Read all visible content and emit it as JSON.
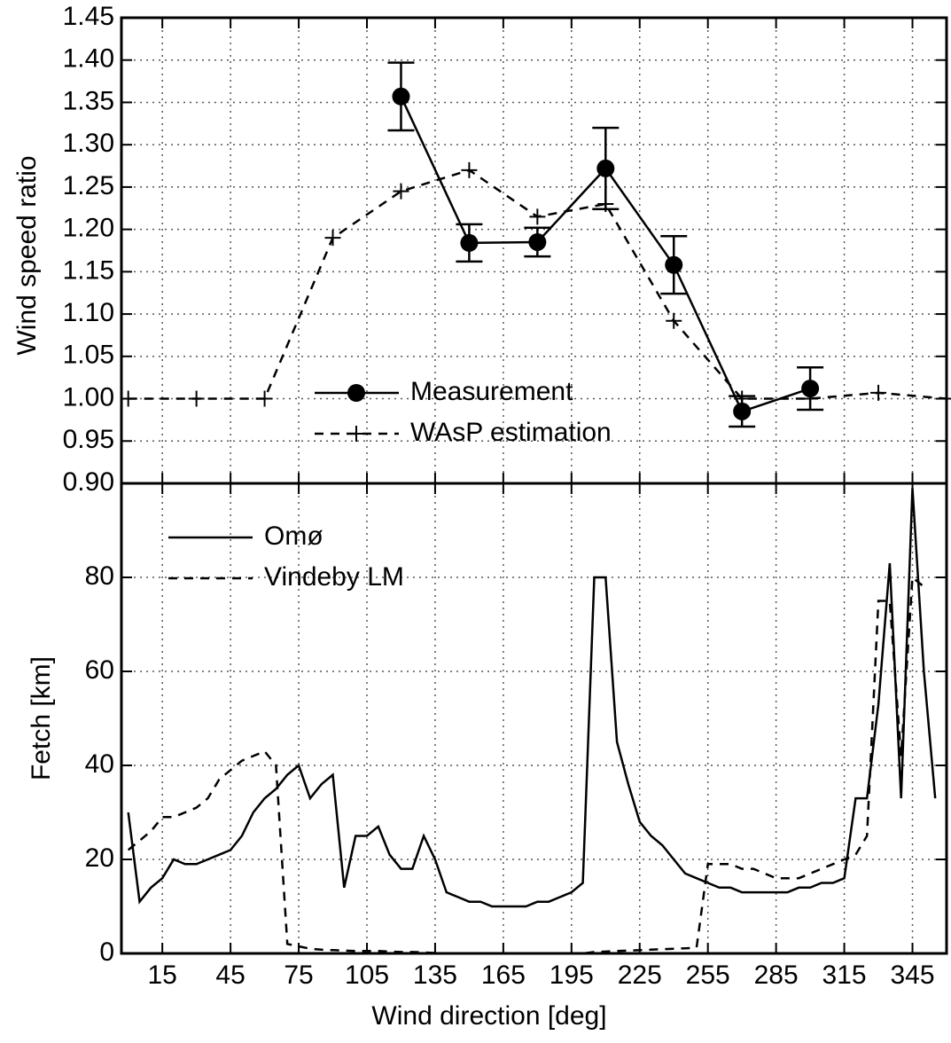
{
  "chart_data": [
    {
      "type": "line",
      "ylabel": "Wind speed ratio",
      "xlim": [
        -3,
        360
      ],
      "xticks": [
        15,
        45,
        75,
        105,
        135,
        165,
        195,
        225,
        255,
        285,
        315,
        345
      ],
      "ylim": [
        0.9,
        1.45
      ],
      "yticks": [
        {
          "value": 0.9,
          "label": "0.90"
        },
        0.95,
        {
          "value": 1.0,
          "label": "1.00"
        },
        1.05,
        {
          "value": 1.1,
          "label": "1.10"
        },
        1.15,
        {
          "value": 1.2,
          "label": "1.20"
        },
        1.25,
        {
          "value": 1.3,
          "label": "1.30"
        },
        1.35,
        {
          "value": 1.4,
          "label": "1.40"
        },
        1.45
      ],
      "grid": true,
      "legend": "lower center",
      "series": [
        {
          "name": "Measurement",
          "color": "#000000",
          "dash": false,
          "marker": "circle",
          "x": [
            120,
            150,
            180,
            210,
            240,
            270,
            300
          ],
          "values": [
            1.357,
            1.184,
            1.185,
            1.272,
            1.158,
            0.985,
            1.012
          ],
          "errors": [
            0.04,
            0.022,
            0.017,
            0.048,
            0.034,
            0.018,
            0.025
          ]
        },
        {
          "name": "WAsP estimation",
          "color": "#000000",
          "dash": true,
          "marker": "plus",
          "x": [
            0,
            30,
            60,
            90,
            120,
            150,
            180,
            210,
            240,
            270,
            300,
            330,
            360
          ],
          "values": [
            1.0,
            1.0,
            1.0,
            1.19,
            1.245,
            1.27,
            1.215,
            1.23,
            1.092,
            1.0,
            1.0,
            1.007,
            1.0
          ]
        }
      ]
    },
    {
      "type": "line",
      "xlabel": "Wind direction [deg]",
      "ylabel": "Fetch [km]",
      "xlim": [
        -3,
        360
      ],
      "xticks": [
        15,
        45,
        75,
        105,
        135,
        165,
        195,
        225,
        255,
        285,
        315,
        345
      ],
      "ylim": [
        0,
        100
      ],
      "yticks": [
        0,
        20,
        40,
        60,
        80
      ],
      "grid": true,
      "legend": "upper left",
      "series": [
        {
          "name": "Omø",
          "color": "#000000",
          "dash": false,
          "x": [
            0,
            5,
            10,
            15,
            20,
            25,
            30,
            35,
            40,
            45,
            50,
            55,
            60,
            65,
            70,
            75,
            80,
            85,
            90,
            95,
            100,
            105,
            110,
            115,
            120,
            125,
            130,
            135,
            140,
            145,
            150,
            155,
            160,
            165,
            170,
            175,
            180,
            185,
            190,
            195,
            200,
            205,
            210,
            215,
            220,
            225,
            230,
            235,
            240,
            245,
            250,
            255,
            260,
            265,
            270,
            275,
            280,
            285,
            290,
            295,
            300,
            305,
            310,
            315,
            320,
            325,
            330,
            335,
            340,
            345,
            350,
            355
          ],
          "values": [
            30,
            11,
            14,
            16,
            20,
            19,
            19,
            20,
            21,
            22,
            25,
            30,
            33,
            35,
            38,
            40,
            33,
            36,
            38,
            14,
            25,
            25,
            27,
            21,
            18,
            18,
            25,
            20,
            13,
            12,
            11,
            11,
            10,
            10,
            10,
            10,
            11,
            11,
            12,
            13,
            15,
            80,
            80,
            45,
            36,
            28,
            25,
            23,
            20,
            17,
            16,
            15,
            14,
            14,
            13,
            13,
            13,
            13,
            13,
            14,
            14,
            15,
            15,
            16,
            33,
            33,
            53,
            83,
            33,
            99,
            60,
            33
          ]
        },
        {
          "name": "Vindeby LM",
          "color": "#000000",
          "dash": true,
          "x": [
            0,
            5,
            10,
            15,
            20,
            25,
            30,
            35,
            40,
            45,
            50,
            55,
            60,
            65,
            70,
            75,
            80,
            85,
            90,
            95,
            100,
            105,
            110,
            115,
            120,
            125,
            130,
            135,
            140,
            145,
            150,
            155,
            160,
            165,
            170,
            175,
            180,
            185,
            190,
            195,
            200,
            205,
            210,
            215,
            220,
            225,
            230,
            235,
            240,
            245,
            250,
            255,
            260,
            265,
            270,
            275,
            280,
            285,
            290,
            295,
            300,
            305,
            310,
            315,
            320,
            325,
            330,
            335,
            340,
            345,
            350
          ],
          "values": [
            22,
            24,
            26,
            29,
            29,
            30,
            31,
            33,
            37,
            39,
            41,
            42,
            43,
            40,
            2,
            1.5,
            1,
            0.8,
            0.7,
            0.6,
            0.5,
            0.5,
            0.5,
            0.4,
            0.3,
            0.3,
            0.2,
            0.1,
            0,
            0,
            0,
            0,
            0,
            0,
            0,
            0,
            0,
            0,
            0,
            0,
            0,
            0.3,
            0.4,
            0.5,
            0.6,
            0.7,
            0.8,
            0.9,
            1,
            1.1,
            1.2,
            19,
            19,
            19,
            18,
            18,
            17,
            16,
            16,
            16,
            17,
            18,
            19,
            20,
            21,
            25,
            75,
            75,
            42,
            80,
            78
          ]
        }
      ]
    }
  ]
}
